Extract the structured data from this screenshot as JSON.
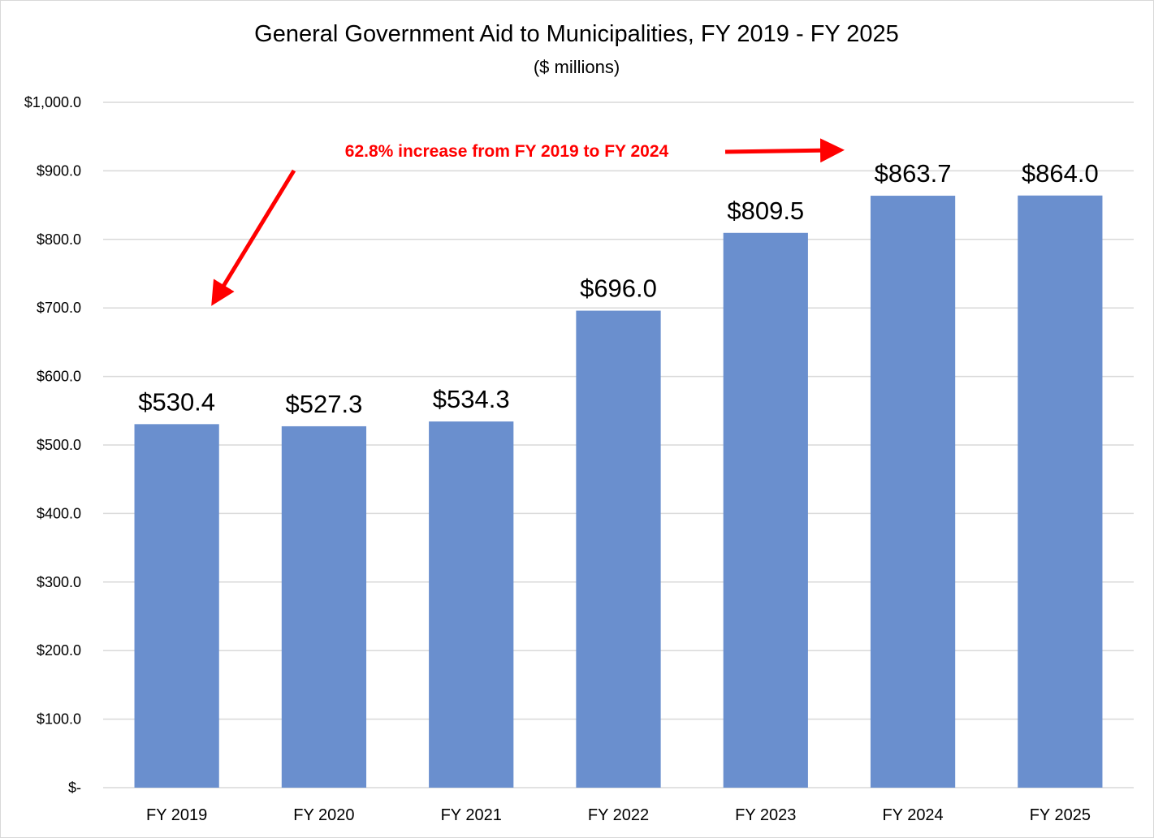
{
  "chart_data": {
    "type": "bar",
    "title": "General Government Aid to Municipalities, FY 2019 - FY 2025",
    "subtitle": "($ millions)",
    "xlabel": "",
    "ylabel": "",
    "categories": [
      "FY 2019",
      "FY 2020",
      "FY 2021",
      "FY 2022",
      "FY 2023",
      "FY 2024",
      "FY 2025"
    ],
    "values": [
      530.4,
      527.3,
      534.3,
      696.0,
      809.5,
      863.7,
      864.0
    ],
    "data_labels": [
      "$530.4",
      "$527.3",
      "$534.3",
      "$696.0",
      "$809.5",
      "$863.7",
      "$864.0"
    ],
    "ylim": [
      0,
      1000
    ],
    "yticks": [
      0,
      100,
      200,
      300,
      400,
      500,
      600,
      700,
      800,
      900,
      1000
    ],
    "ytick_labels": [
      "$-",
      "$100.0",
      "$200.0",
      "$300.0",
      "$400.0",
      "$500.0",
      "$600.0",
      "$700.0",
      "$800.0",
      "$900.0",
      "$1,000.0"
    ],
    "grid": true,
    "legend": "none",
    "bar_color": "#6a8fce",
    "annotations": [
      {
        "text": "62.8% increase from FY 2019 to FY 2024",
        "color": "#ff0000",
        "arrows": [
          {
            "points_to": "FY 2019",
            "direction": "down-left"
          },
          {
            "points_to": "FY 2024",
            "direction": "right"
          }
        ]
      }
    ]
  }
}
